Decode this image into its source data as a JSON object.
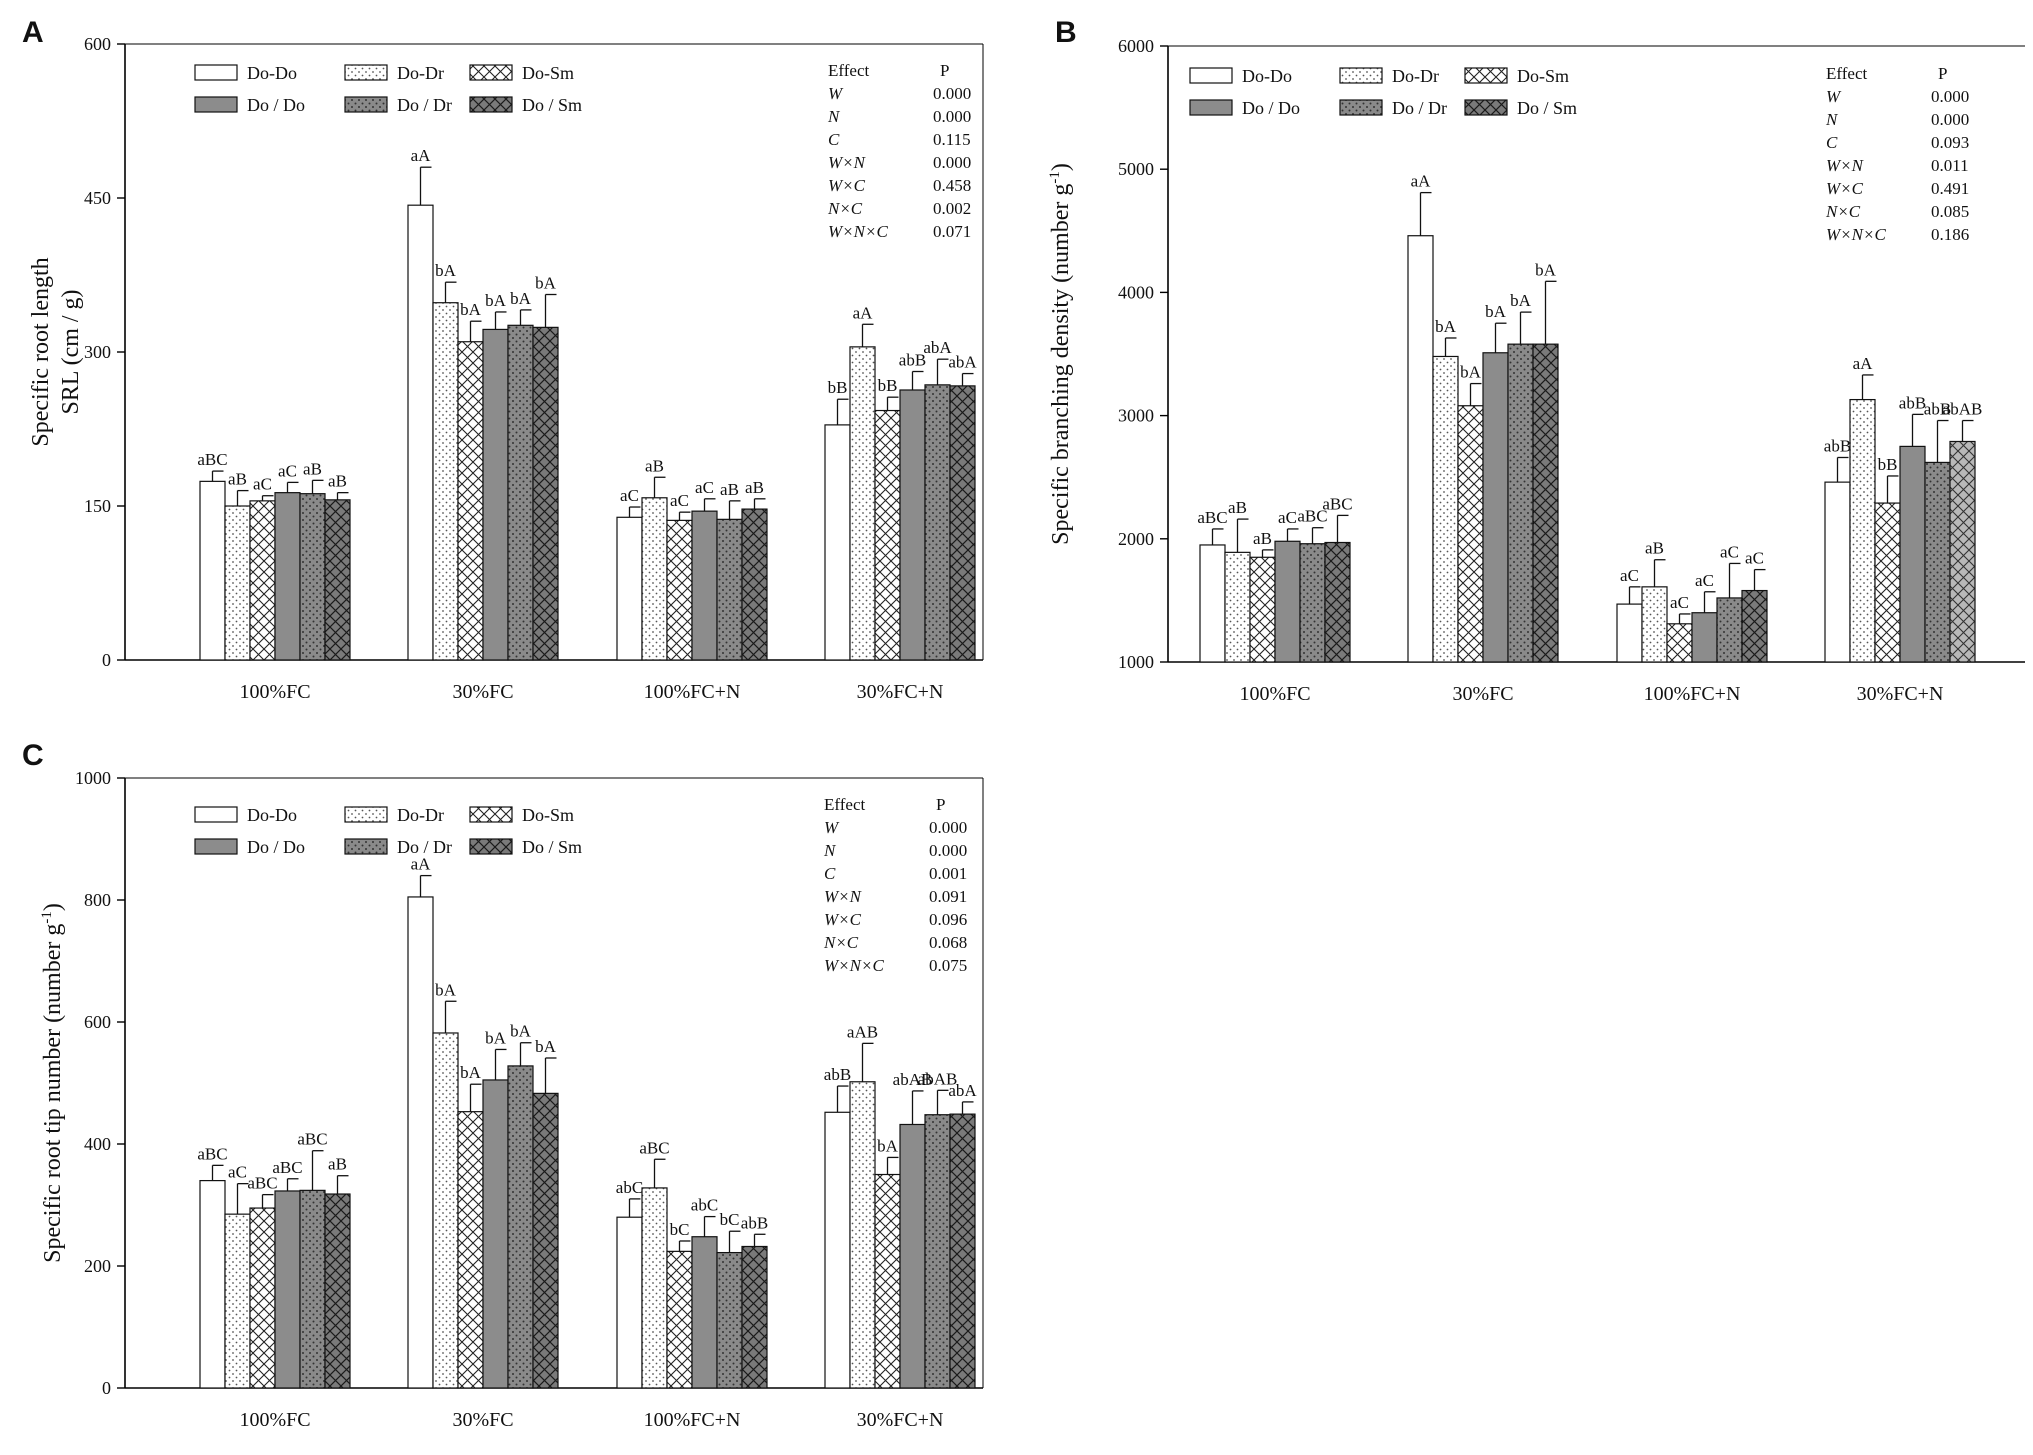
{
  "palette": {
    "axis": "#000000",
    "bar_stroke": "#111111",
    "white": "#ffffff",
    "gray": "#8c8c8c",
    "gray_dark": "#6f6f6f"
  },
  "legend_entries": [
    {
      "label": "Do-Do",
      "pattern": "white"
    },
    {
      "label": "Do-Dr",
      "pattern": "dots"
    },
    {
      "label": "Do-Sm",
      "pattern": "cross"
    },
    {
      "label": "Do / Do",
      "pattern": "gray"
    },
    {
      "label": "Do / Dr",
      "pattern": "graydots"
    },
    {
      "label": "Do / Sm",
      "pattern": "graycross"
    }
  ],
  "effects_header": [
    "Effect",
    "P"
  ],
  "chart_data": [
    {
      "panel": "A",
      "type": "bar",
      "ylabel_lines": [
        "Specific root length",
        "SRL (cm / g)"
      ],
      "ylim": [
        0,
        600
      ],
      "yticks": [
        0,
        150,
        300,
        450,
        600
      ],
      "categories": [
        "100%FC",
        "30%FC",
        "100%FC+N",
        "30%FC+N"
      ],
      "series": [
        {
          "name": "Do-Do",
          "values": [
            174,
            443,
            139,
            229
          ],
          "errors": [
            10,
            37,
            10,
            25
          ],
          "letters": [
            "aBC",
            "aA",
            "aC",
            "bB"
          ]
        },
        {
          "name": "Do-Dr",
          "values": [
            150,
            348,
            158,
            305
          ],
          "errors": [
            15,
            20,
            20,
            22
          ],
          "letters": [
            "aB",
            "bA",
            "aB",
            "aA"
          ]
        },
        {
          "name": "Do-Sm",
          "values": [
            155,
            310,
            136,
            243
          ],
          "errors": [
            5,
            20,
            8,
            13
          ],
          "letters": [
            "aC",
            "bA",
            "aC",
            "bB"
          ]
        },
        {
          "name": "Do / Do",
          "values": [
            163,
            322,
            145,
            263
          ],
          "errors": [
            10,
            17,
            12,
            18
          ],
          "letters": [
            "aC",
            "bA",
            "aC",
            "abB"
          ]
        },
        {
          "name": "Do / Dr",
          "values": [
            162,
            326,
            137,
            268
          ],
          "errors": [
            13,
            15,
            18,
            25
          ],
          "letters": [
            "aB",
            "bA",
            "aB",
            "abA"
          ]
        },
        {
          "name": "Do / Sm",
          "values": [
            156,
            324,
            147,
            267
          ],
          "errors": [
            7,
            32,
            10,
            12
          ],
          "letters": [
            "aB",
            "bA",
            "aB",
            "abA"
          ]
        }
      ],
      "effects": [
        {
          "term": "W",
          "p": "0.000"
        },
        {
          "term": "N",
          "p": "0.000"
        },
        {
          "term": "C",
          "p": "0.115"
        },
        {
          "term": "W×N",
          "p": "0.000"
        },
        {
          "term": "W×C",
          "p": "0.458"
        },
        {
          "term": "N×C",
          "p": "0.002"
        },
        {
          "term": "W×N×C",
          "p": "0.071"
        }
      ]
    },
    {
      "panel": "B",
      "type": "bar",
      "ylabel_lines": [
        "Specific branching density (number g",
        "-1",
        ")"
      ],
      "ylim": [
        1000,
        6000
      ],
      "yticks": [
        1000,
        2000,
        3000,
        4000,
        5000,
        6000
      ],
      "categories": [
        "100%FC",
        "30%FC",
        "100%FC+N",
        "30%FC+N"
      ],
      "series": [
        {
          "name": "Do-Do",
          "values": [
            1950,
            4460,
            1470,
            2460
          ],
          "errors": [
            130,
            350,
            140,
            200
          ],
          "letters": [
            "aBC",
            "aA",
            "aC",
            "abB"
          ]
        },
        {
          "name": "Do-Dr",
          "values": [
            1890,
            3480,
            1610,
            3130
          ],
          "errors": [
            270,
            150,
            220,
            200
          ],
          "letters": [
            "aB",
            "bA",
            "aB",
            "aA"
          ]
        },
        {
          "name": "Do-Sm",
          "values": [
            1850,
            3080,
            1310,
            2290
          ],
          "errors": [
            60,
            180,
            80,
            220
          ],
          "letters": [
            "aB",
            "bA",
            "aC",
            "bB"
          ]
        },
        {
          "name": "Do / Do",
          "values": [
            1980,
            3510,
            1400,
            2750
          ],
          "errors": [
            100,
            240,
            170,
            260
          ],
          "letters": [
            "aC",
            "bA",
            "aC",
            "abB"
          ]
        },
        {
          "name": "Do / Dr",
          "values": [
            1960,
            3580,
            1520,
            2620
          ],
          "errors": [
            130,
            260,
            280,
            340
          ],
          "letters": [
            "aBC",
            "bA",
            "aC",
            "abB"
          ]
        },
        {
          "name": "Do / Sm",
          "values": [
            1970,
            3580,
            1580,
            2790
          ],
          "errors": [
            220,
            510,
            170,
            170
          ],
          "letters": [
            "aBC",
            "bA",
            "aC",
            "abAB"
          ]
        }
      ],
      "effects": [
        {
          "term": "W",
          "p": "0.000"
        },
        {
          "term": "N",
          "p": "0.000"
        },
        {
          "term": "C",
          "p": "0.093"
        },
        {
          "term": "W×N",
          "p": "0.011"
        },
        {
          "term": "W×C",
          "p": "0.491"
        },
        {
          "term": "N×C",
          "p": "0.085"
        },
        {
          "term": "W×N×C",
          "p": "0.186"
        }
      ]
    },
    {
      "panel": "C",
      "type": "bar",
      "ylabel_lines": [
        "Specific root tip number (number g",
        "-1",
        ")"
      ],
      "ylim": [
        0,
        1000
      ],
      "yticks": [
        0,
        200,
        400,
        600,
        800,
        1000
      ],
      "categories": [
        "100%FC",
        "30%FC",
        "100%FC+N",
        "30%FC+N"
      ],
      "series": [
        {
          "name": "Do-Do",
          "values": [
            340,
            805,
            280,
            452
          ],
          "errors": [
            25,
            35,
            30,
            43
          ],
          "letters": [
            "aBC",
            "aA",
            "abC",
            "abB"
          ]
        },
        {
          "name": "Do-Dr",
          "values": [
            285,
            582,
            328,
            502
          ],
          "errors": [
            50,
            52,
            47,
            63
          ],
          "letters": [
            "aC",
            "bA",
            "aBC",
            "aAB"
          ]
        },
        {
          "name": "Do-Sm",
          "values": [
            295,
            453,
            224,
            350
          ],
          "errors": [
            22,
            45,
            17,
            28
          ],
          "letters": [
            "aBC",
            "bA",
            "bC",
            "bA"
          ]
        },
        {
          "name": "Do / Do",
          "values": [
            323,
            505,
            248,
            432
          ],
          "errors": [
            20,
            50,
            33,
            55
          ],
          "letters": [
            "aBC",
            "bA",
            "abC",
            "abAB"
          ]
        },
        {
          "name": "Do / Dr",
          "values": [
            324,
            528,
            222,
            448
          ],
          "errors": [
            65,
            38,
            35,
            40
          ],
          "letters": [
            "aBC",
            "bA",
            "bC",
            "abAB"
          ]
        },
        {
          "name": "Do / Sm",
          "values": [
            318,
            483,
            232,
            449
          ],
          "errors": [
            30,
            58,
            20,
            20
          ],
          "letters": [
            "aB",
            "bA",
            "abB",
            "abA"
          ]
        }
      ],
      "effects": [
        {
          "term": "W",
          "p": "0.000"
        },
        {
          "term": "N",
          "p": "0.000"
        },
        {
          "term": "C",
          "p": "0.001"
        },
        {
          "term": "W×N",
          "p": "0.091"
        },
        {
          "term": "W×C",
          "p": "0.096"
        },
        {
          "term": "N×C",
          "p": "0.068"
        },
        {
          "term": "W×N×C",
          "p": "0.075"
        }
      ]
    }
  ]
}
